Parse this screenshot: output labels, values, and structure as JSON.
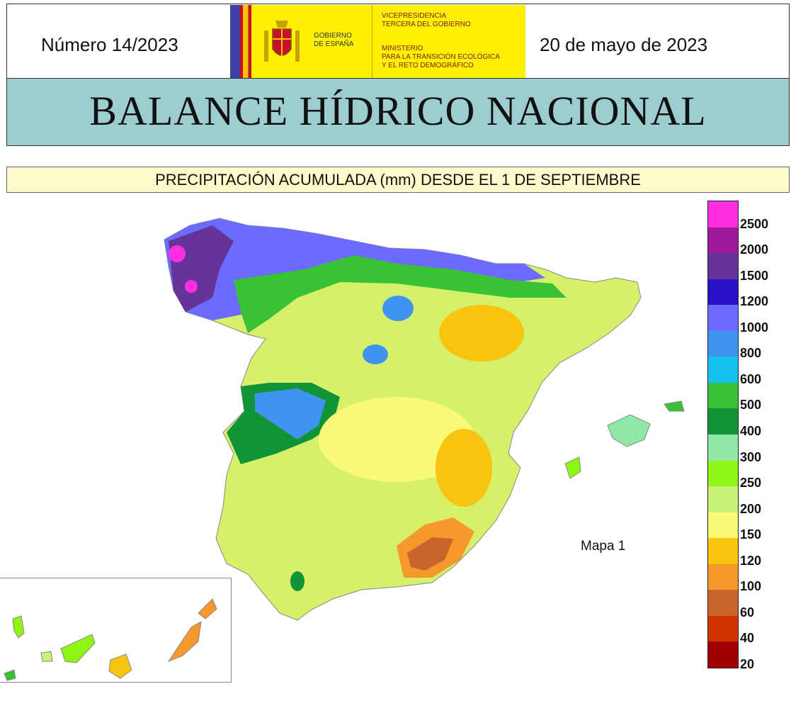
{
  "header": {
    "issue": "Número 14/2023",
    "date": "20 de mayo de 2023",
    "logo": {
      "gov_line1": "GOBIERNO",
      "gov_line2": "DE ESPAÑA",
      "vice_line1": "VICEPRESIDENCIA",
      "vice_line2": "TERCERA DEL GOBIERNO",
      "min_line1": "MINISTERIO",
      "min_line2": "PARA LA TRANSICIÓN ECOLÓGICA",
      "min_line3": "Y EL RETO DEMOGRÁFICO"
    }
  },
  "title": "BALANCE HÍDRICO NACIONAL",
  "subtitle": "PRECIPITACIÓN ACUMULADA (mm) DESDE EL 1 DE SEPTIEMBRE",
  "map": {
    "label": "Mapa 1",
    "colors": {
      "land_base": "#f5f57a",
      "border": "#aaaaaa"
    }
  },
  "legend": {
    "labels": [
      "2500",
      "2000",
      "1500",
      "1200",
      "1000",
      "800",
      "600",
      "500",
      "400",
      "300",
      "250",
      "200",
      "150",
      "120",
      "100",
      "60",
      "40",
      "20"
    ],
    "colors": [
      "#ff2ee0",
      "#a0199c",
      "#663399",
      "#2a12c8",
      "#6b6bff",
      "#3f94f0",
      "#16c2f0",
      "#38c234",
      "#119437",
      "#8fe8a6",
      "#8ef514",
      "#c8f27a",
      "#fafa78",
      "#f7c510",
      "#f7982c",
      "#c8642c",
      "#d23200",
      "#a00000"
    ]
  }
}
